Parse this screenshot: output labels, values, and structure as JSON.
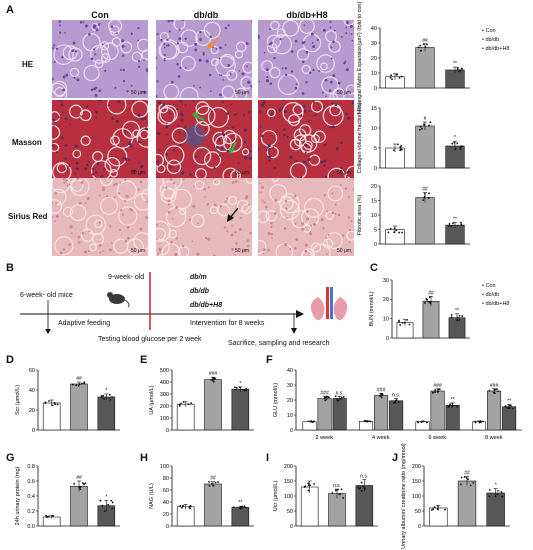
{
  "panels": {
    "A": "A",
    "B": "B",
    "C": "C",
    "D": "D",
    "E": "E",
    "F": "F",
    "G": "G",
    "H": "H",
    "I": "I",
    "J": "J"
  },
  "histology": {
    "columns": [
      "Con",
      "db/db",
      "db/db+H8"
    ],
    "rows": [
      "HE",
      "Masson",
      "Sirius Red"
    ],
    "scalebar": "50 μm",
    "colors": {
      "he": "#b99ad0",
      "masson": "#b8303f",
      "sirius": "#e7b9bd"
    }
  },
  "timeline": {
    "start": "6-week- old mice",
    "adaptive": "Adaptive feeding",
    "testing": "Testing blood glucose per 2 week",
    "nineweek": "9-week- old",
    "groups": [
      "db/m",
      "db/db",
      "db/db+H8"
    ],
    "intervention": "Intervention for 8 weeks",
    "end": "Sacrifice, sampling and research"
  },
  "legend": [
    "Con",
    "db/db",
    "db/db+H8"
  ],
  "colors": {
    "con": "#ffffff",
    "dbdb": "#a3a3a3",
    "h8": "#585858"
  },
  "chart_data": [
    {
      "id": "A1",
      "type": "bar",
      "ylabel": "Mesangial Matrix Expansion(μm²) (fold to con)",
      "ylim": [
        0,
        40
      ],
      "yticks": [
        0,
        10,
        20,
        30,
        40
      ],
      "categories": [
        "Con",
        "db/db",
        "db/db+H8"
      ],
      "values": [
        7.5,
        27,
        12
      ],
      "errors": [
        2,
        2.5,
        2
      ],
      "sig": [
        "",
        "##",
        "**"
      ]
    },
    {
      "id": "A2",
      "type": "bar",
      "ylabel": "Collagen volume fraction (%)",
      "ylim": [
        0,
        15
      ],
      "yticks": [
        0,
        5,
        10,
        15
      ],
      "categories": [
        "Con",
        "db/db",
        "db/db+H8"
      ],
      "values": [
        5,
        10.5,
        5.5
      ],
      "errors": [
        1,
        1,
        1.2
      ],
      "sig": [
        "",
        "#",
        "*"
      ]
    },
    {
      "id": "A3",
      "type": "bar",
      "ylabel": "Fibrotic area (%)",
      "ylim": [
        0,
        20
      ],
      "yticks": [
        0,
        5,
        10,
        15,
        20
      ],
      "categories": [
        "Con",
        "db/db",
        "db/db+H8"
      ],
      "values": [
        5,
        16,
        6.5
      ],
      "errors": [
        1.2,
        1.8,
        1
      ],
      "sig": [
        "",
        "##",
        "**"
      ]
    },
    {
      "id": "C",
      "type": "bar",
      "ylabel": "BUN (mmol/L)",
      "ylim": [
        0,
        30
      ],
      "yticks": [
        0,
        10,
        20,
        30
      ],
      "categories": [
        "Con",
        "db/db",
        "db/db+H8"
      ],
      "values": [
        8,
        19,
        10.5
      ],
      "errors": [
        1.5,
        2.5,
        2
      ],
      "sig": [
        "",
        "##",
        "**"
      ]
    },
    {
      "id": "D",
      "type": "bar",
      "ylabel": "Scr (μmol/L)",
      "ylim": [
        0,
        60
      ],
      "yticks": [
        0,
        20,
        40,
        60
      ],
      "categories": [
        "Con",
        "db/db",
        "db/db+H8"
      ],
      "values": [
        27,
        46,
        33
      ],
      "errors": [
        3,
        2,
        3
      ],
      "sig": [
        "",
        "##",
        "*"
      ]
    },
    {
      "id": "E",
      "type": "bar",
      "ylabel": "UA (μmol/L)",
      "ylim": [
        0,
        500
      ],
      "yticks": [
        0,
        100,
        200,
        300,
        400,
        500
      ],
      "categories": [
        "Con",
        "db/db",
        "db/db+H8"
      ],
      "values": [
        215,
        420,
        340
      ],
      "errors": [
        20,
        20,
        20
      ],
      "sig": [
        "",
        "###",
        "*"
      ]
    },
    {
      "id": "F",
      "type": "bar",
      "ylabel": "GLU (mmol/L)",
      "ylim": [
        0,
        40
      ],
      "yticks": [
        0,
        10,
        20,
        30,
        40
      ],
      "categories": [
        "2 week",
        "4 week",
        "6 week",
        "8 week"
      ],
      "series": [
        {
          "name": "Con",
          "values": [
            5.5,
            5.8,
            5.5,
            5.5
          ],
          "errors": [
            0.5,
            0.5,
            0.5,
            0.5
          ]
        },
        {
          "name": "db/db",
          "values": [
            21,
            23,
            26,
            26
          ],
          "errors": [
            1.5,
            1.5,
            1.5,
            1.5
          ]
        },
        {
          "name": "db/db+H8",
          "values": [
            21,
            19.5,
            16.5,
            15.5
          ],
          "errors": [
            1.5,
            1.5,
            1.5,
            1.5
          ]
        }
      ],
      "sig": [
        [
          "",
          "###",
          "n.s."
        ],
        [
          "",
          "###",
          "n.s."
        ],
        [
          "",
          "###",
          "**"
        ],
        [
          "",
          "###",
          "**"
        ]
      ]
    },
    {
      "id": "G",
      "type": "bar",
      "ylabel": "24h urinary protein (mg)",
      "ylim": [
        0,
        0.8
      ],
      "yticks": [
        0.0,
        0.2,
        0.4,
        0.6,
        0.8
      ],
      "categories": [
        "Con",
        "db/db",
        "db/db+H8"
      ],
      "values": [
        0.12,
        0.53,
        0.27
      ],
      "errors": [
        0.02,
        0.07,
        0.07
      ],
      "sig": [
        "",
        "##",
        "*"
      ]
    },
    {
      "id": "H",
      "type": "bar",
      "ylabel": "NAG (U/L)",
      "ylim": [
        0,
        100
      ],
      "yticks": [
        0,
        20,
        40,
        60,
        80,
        100
      ],
      "categories": [
        "Con",
        "db/db",
        "db/db+H8"
      ],
      "values": [
        32,
        70,
        31
      ],
      "errors": [
        4,
        4,
        2
      ],
      "sig": [
        "",
        "##",
        "**"
      ]
    },
    {
      "id": "I",
      "type": "bar",
      "ylabel": "Ucr (μmol/L)",
      "ylim": [
        0,
        200
      ],
      "yticks": [
        0,
        50,
        100,
        150,
        200
      ],
      "categories": [
        "Con",
        "db/db",
        "db/db+H8"
      ],
      "values": [
        130,
        108,
        135
      ],
      "errors": [
        20,
        15,
        20
      ],
      "sig": [
        "",
        "n.s.",
        "n.s."
      ]
    },
    {
      "id": "J",
      "type": "bar",
      "ylabel": "Urinary albumin/ creatinine ratio (mg/mmol)",
      "ylim": [
        0,
        200
      ],
      "yticks": [
        0,
        50,
        100,
        150,
        200
      ],
      "categories": [
        "Con",
        "db/db",
        "db/db+H8"
      ],
      "values": [
        60,
        150,
        110
      ],
      "errors": [
        8,
        15,
        15
      ],
      "sig": [
        "",
        "##",
        "*"
      ]
    }
  ]
}
